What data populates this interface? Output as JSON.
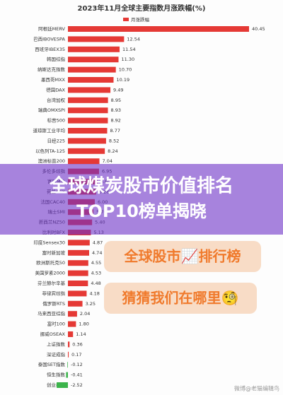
{
  "chart_data": {
    "type": "hbar",
    "title": "2023年11月全球主要指数月涨跌幅(%)",
    "series": [
      {
        "name": "月涨跌幅",
        "color": "#e53935",
        "negative_color": "#3cb44b",
        "values": [
          40.45,
          12.54,
          11.54,
          11.3,
          10.7,
          10.19,
          9.49,
          8.95,
          8.93,
          8.92,
          8.77,
          8.52,
          8.24,
          7.04,
          6.95,
          6.6,
          6.28,
          6.0,
          5.7,
          5.4,
          5.13,
          4.87,
          4.74,
          4.55,
          4.53,
          4.48,
          4.18,
          3.25,
          2.04,
          1.8,
          1.14,
          0.36,
          0.17,
          -0.12,
          -0.41,
          -2.52
        ],
        "value_labels": [
          "40.45",
          "12.54",
          "11.54",
          "11.30",
          "10.70",
          "10.19",
          "9.49",
          "8.95",
          "8.93",
          "8.92",
          "8.77",
          "8.52",
          "8.24",
          "7.04",
          "6.95",
          "6.60",
          "6.28",
          "6.00",
          "5.70",
          "5.40",
          "5.13",
          "4.87",
          "4.74",
          "4.55",
          "4.53",
          "4.48",
          "4.18",
          "3.25",
          "2.04",
          "1.80",
          "1.14",
          "0.36",
          "0.17",
          "-0.12",
          "-0.41",
          "-2.52"
        ]
      }
    ],
    "categories": [
      "阿根廷MERV",
      "巴西IBOVESPA",
      "西班牙IBEX35",
      "韩国综指",
      "纳斯达克指数",
      "墨西哥MXX",
      "德国DAX",
      "台湾加权",
      "瑞典OMXSPI",
      "标普500",
      "道琼斯工业平均",
      "日经225",
      "以色列TA-125",
      "澳洲标普200",
      "多伦多综指",
      "富时MIB",
      "荷兰AEX",
      "法国CAC40",
      "瑞士SMI",
      "新西兰NZ50",
      "比利时BFX",
      "印度Sensex30",
      "富时新加坡",
      "欧洲斯托克50",
      "美国罗素2000",
      "芬兰赫尔辛基",
      "菲律宾综指",
      "俄罗斯RTS",
      "马来西亚综指",
      "富时100",
      "挪威OSEAX",
      "上证指数",
      "深证成指",
      "泰国SET指数",
      "恒生指数",
      "创业板指"
    ]
  },
  "overlay": {
    "banner": [
      "全球煤炭股市价值排名",
      "TOP10榜单揭晓"
    ],
    "badges": [
      "全球股市📈排行榜",
      "猜猜我们在哪里🧐"
    ],
    "watermark": "微博@老猫编辑鸟"
  }
}
